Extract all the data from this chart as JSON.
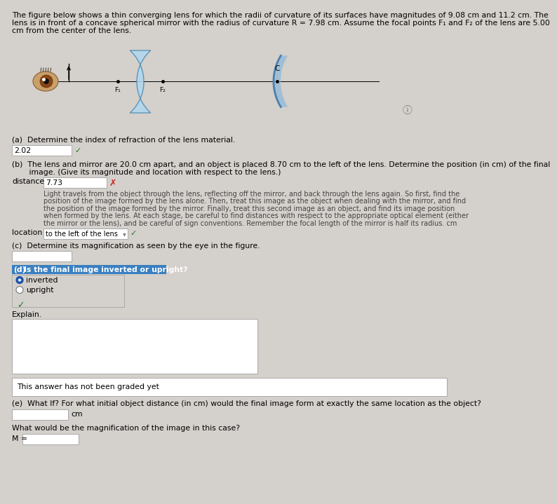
{
  "bg_color": "#d4d0cb",
  "title_lines": [
    "The figure below shows a thin converging lens for which the radii of curvature of its surfaces have magnitudes of 9.08 cm and 11.2 cm. The",
    "lens is in front of a concave spherical mirror with the radius of curvature R = 7.98 cm. Assume the focal points F₁ and F₂ of the lens are 5.00",
    "cm from the center of the lens."
  ],
  "section_a_label": "(a)  Determine the index of refraction of the lens material.",
  "section_a_answer": "2.02",
  "section_b_line1": "(b)  The lens and mirror are 20.0 cm apart, and an object is placed 8.70 cm to the left of the lens. Determine the position (in cm) of the final",
  "section_b_line2": "       image. (Give its magnitude and location with respect to the lens.)",
  "section_b_distance_answer": "7.73",
  "hint_lines": [
    "Light travels from the object through the lens, reflecting off the mirror, and back through the lens again. So first, find the",
    "position of the image formed by the lens alone. Then, treat this image as the object when dealing with the mirror, and find",
    "the position of the image formed by the mirror. Finally, treat this second image as an object, and find its image position",
    "when formed by the lens. At each stage, be careful to find distances with respect to the appropriate optical element (either",
    "the mirror or the lens), and be careful of sign conventions. Remember the focal length of the mirror is half its radius. cm"
  ],
  "section_b_location_answer": "to the left of the lens",
  "section_c_label": "(c)  Determine its magnification as seen by the eye in the figure.",
  "section_d_label": "Is the final image inverted or upright?",
  "section_d_bg": "#3a7fc1",
  "not_graded_text": "This answer has not been graded yet",
  "section_e_line": "(e)  What If? For what initial object distance (in cm) would the final image form at exactly the same location as the object?",
  "section_e_mag_label": "What would be the magnification of the image in this case?",
  "white": "#ffffff",
  "light_gray": "#c8c4be",
  "dark_text": "#1a1a1a",
  "hint_color": "#444444",
  "green_check": "#2a7a2a",
  "red_x": "#cc2222",
  "border_color": "#999999",
  "info_color": "#777777"
}
